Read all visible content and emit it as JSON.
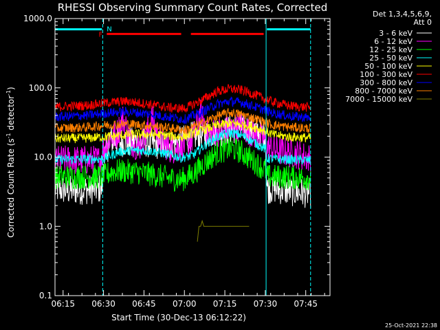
{
  "chart_data": {
    "type": "line",
    "title": "RHESSI Observing Summary Count Rates, Corrected",
    "xlabel": "Start Time (30-Dec-13 06:12:22)",
    "ylabel_main": "Corrected Count Rate (s",
    "ylabel_sup1": "-1",
    "ylabel_mid": " detector",
    "ylabel_sup2": "-1",
    "ylabel_end": ")",
    "y_scale": "log",
    "ylim": [
      0.1,
      1000
    ],
    "xlim": [
      6.2,
      7.9
    ],
    "x_ticks": [
      {
        "value": 6.25,
        "label": "06:15"
      },
      {
        "value": 6.5,
        "label": "06:30"
      },
      {
        "value": 6.75,
        "label": "06:45"
      },
      {
        "value": 7.0,
        "label": "07:00"
      },
      {
        "value": 7.25,
        "label": "07:15"
      },
      {
        "value": 7.5,
        "label": "07:30"
      },
      {
        "value": 7.75,
        "label": "07:45"
      }
    ],
    "y_ticks": [
      {
        "value": 0.1,
        "label": "0.1"
      },
      {
        "value": 1,
        "label": "1.0"
      },
      {
        "value": 10,
        "label": "10.0"
      },
      {
        "value": 100,
        "label": "100.0"
      },
      {
        "value": 1000,
        "label": "1000.0"
      }
    ],
    "legend_header": [
      "Det 1,3,4,5,6,9,",
      "Att 0"
    ],
    "legend_position": "right",
    "series": [
      {
        "name": "3 - 6 keV",
        "color": "#ffffff",
        "x": [
          6.2,
          6.28,
          6.49,
          6.5,
          6.54,
          6.58,
          6.65,
          6.7,
          6.78,
          6.85,
          6.95,
          7.05,
          7.15,
          7.25,
          7.35,
          7.45,
          7.5,
          7.51,
          7.56,
          7.62,
          7.7,
          7.78
        ],
        "y": [
          3.5,
          3.3,
          3.5,
          8.5,
          18,
          17,
          16,
          17,
          16,
          15,
          16,
          20,
          22,
          24,
          27,
          24,
          21,
          3.5,
          3.5,
          3.3,
          3.1,
          3.0
        ]
      },
      {
        "name": "6 - 12 keV",
        "color": "#ff00ff",
        "x": [
          6.2,
          6.48,
          6.5,
          6.54,
          6.58,
          6.62,
          6.67,
          6.72,
          6.76,
          6.8,
          6.85,
          6.92,
          6.98,
          7.05,
          7.1,
          7.15,
          7.25,
          7.35,
          7.42,
          7.5,
          7.51,
          7.6,
          7.7,
          7.78
        ],
        "y": [
          9,
          9,
          13,
          19,
          21,
          36,
          17,
          14,
          20,
          36,
          17,
          13,
          14,
          18,
          42,
          22,
          24,
          28,
          22,
          18,
          14,
          12,
          11,
          9.5
        ]
      },
      {
        "name": "12 - 25 keV",
        "color": "#00ff00",
        "x": [
          6.2,
          6.5,
          6.55,
          6.62,
          6.7,
          6.8,
          6.9,
          6.98,
          7.05,
          7.12,
          7.2,
          7.28,
          7.35,
          7.42,
          7.5,
          7.51,
          7.6,
          7.7,
          7.78
        ],
        "y": [
          5.2,
          5.2,
          6.2,
          6.3,
          6.1,
          5.6,
          5.0,
          4.7,
          5.6,
          8.0,
          11.5,
          13.5,
          12.0,
          9.0,
          6.5,
          5.2,
          5.2,
          5.1,
          5.0
        ]
      },
      {
        "name": "25 - 50 keV",
        "color": "#00ffff",
        "x": [
          6.2,
          6.5,
          6.6,
          6.7,
          6.8,
          6.9,
          6.98,
          7.05,
          7.12,
          7.2,
          7.28,
          7.35,
          7.42,
          7.5,
          7.51,
          7.6,
          7.7,
          7.78
        ],
        "y": [
          9.2,
          9.5,
          12.0,
          12.5,
          12.2,
          11.0,
          9.8,
          10.5,
          14.5,
          19.5,
          22.5,
          21.0,
          17.0,
          13.0,
          9.5,
          9.3,
          9.1,
          9.0
        ]
      },
      {
        "name": "50 - 100 keV",
        "color": "#ffff00",
        "x": [
          6.2,
          6.4,
          6.55,
          6.7,
          6.85,
          6.98,
          7.1,
          7.2,
          7.28,
          7.38,
          7.48,
          7.55,
          7.65,
          7.78
        ],
        "y": [
          18.5,
          18.8,
          20,
          21.5,
          21.0,
          19.5,
          24,
          28.5,
          31,
          29,
          25,
          21,
          19.5,
          19
        ]
      },
      {
        "name": "100 - 300 keV",
        "color": "#ff0000",
        "x": [
          6.2,
          6.4,
          6.55,
          6.65,
          6.78,
          6.9,
          7.0,
          7.1,
          7.2,
          7.28,
          7.36,
          7.45,
          7.55,
          7.65,
          7.78
        ],
        "y": [
          53,
          56,
          62,
          64,
          58,
          52,
          50,
          65,
          88,
          97,
          92,
          77,
          62,
          55,
          52
        ]
      },
      {
        "name": "300 - 800 keV",
        "color": "#0000ff",
        "x": [
          6.2,
          6.4,
          6.55,
          6.65,
          6.78,
          6.9,
          7.0,
          7.1,
          7.2,
          7.28,
          7.36,
          7.45,
          7.55,
          7.65,
          7.78
        ],
        "y": [
          38,
          40,
          44,
          45,
          42,
          38,
          35,
          44,
          58,
          64,
          61,
          52,
          43,
          39,
          37
        ]
      },
      {
        "name": "800 - 7000 keV",
        "color": "#ff8000",
        "x": [
          6.2,
          6.4,
          6.55,
          6.65,
          6.78,
          6.9,
          7.0,
          7.1,
          7.2,
          7.28,
          7.36,
          7.45,
          7.55,
          7.65,
          7.78
        ],
        "y": [
          26,
          27,
          29.5,
          30,
          28.5,
          26.5,
          24.5,
          30,
          39,
          44,
          41,
          35,
          29,
          27,
          26
        ]
      },
      {
        "name": "7000 - 15000 keV",
        "color": "#808000",
        "x": [
          7.08,
          7.09,
          7.1,
          7.11,
          7.12,
          7.4
        ],
        "y": [
          0.6,
          1.0,
          1.0,
          1.2,
          1.0,
          1.0
        ]
      }
    ],
    "annotations": [
      {
        "text": "F",
        "color": "#ff0000",
        "x": 6.47,
        "y": 600
      },
      {
        "text": "N",
        "color": "#00ffff",
        "x": 6.52,
        "y": 720
      }
    ],
    "flag_bars": [
      {
        "color": "#00ffff",
        "x_start": 6.2,
        "x_end": 6.49,
        "y": 700
      },
      {
        "color": "#ff0000",
        "x_start": 6.52,
        "x_end": 6.98,
        "y": 600
      },
      {
        "color": "#ff0000",
        "x_start": 7.04,
        "x_end": 7.49,
        "y": 600
      },
      {
        "color": "#00ffff",
        "x_start": 7.51,
        "x_end": 7.78,
        "y": 700
      }
    ],
    "vlines": [
      {
        "x": 6.2,
        "style": "solid",
        "color": "#00ffff"
      },
      {
        "x": 6.495,
        "style": "dashed",
        "color": "#00ffff"
      },
      {
        "x": 7.505,
        "style": "solid",
        "color": "#00ffff"
      },
      {
        "x": 7.78,
        "style": "dashed",
        "color": "#00ffff"
      }
    ]
  },
  "footer": {
    "timestamp": "25-Oct-2021 22:38"
  }
}
